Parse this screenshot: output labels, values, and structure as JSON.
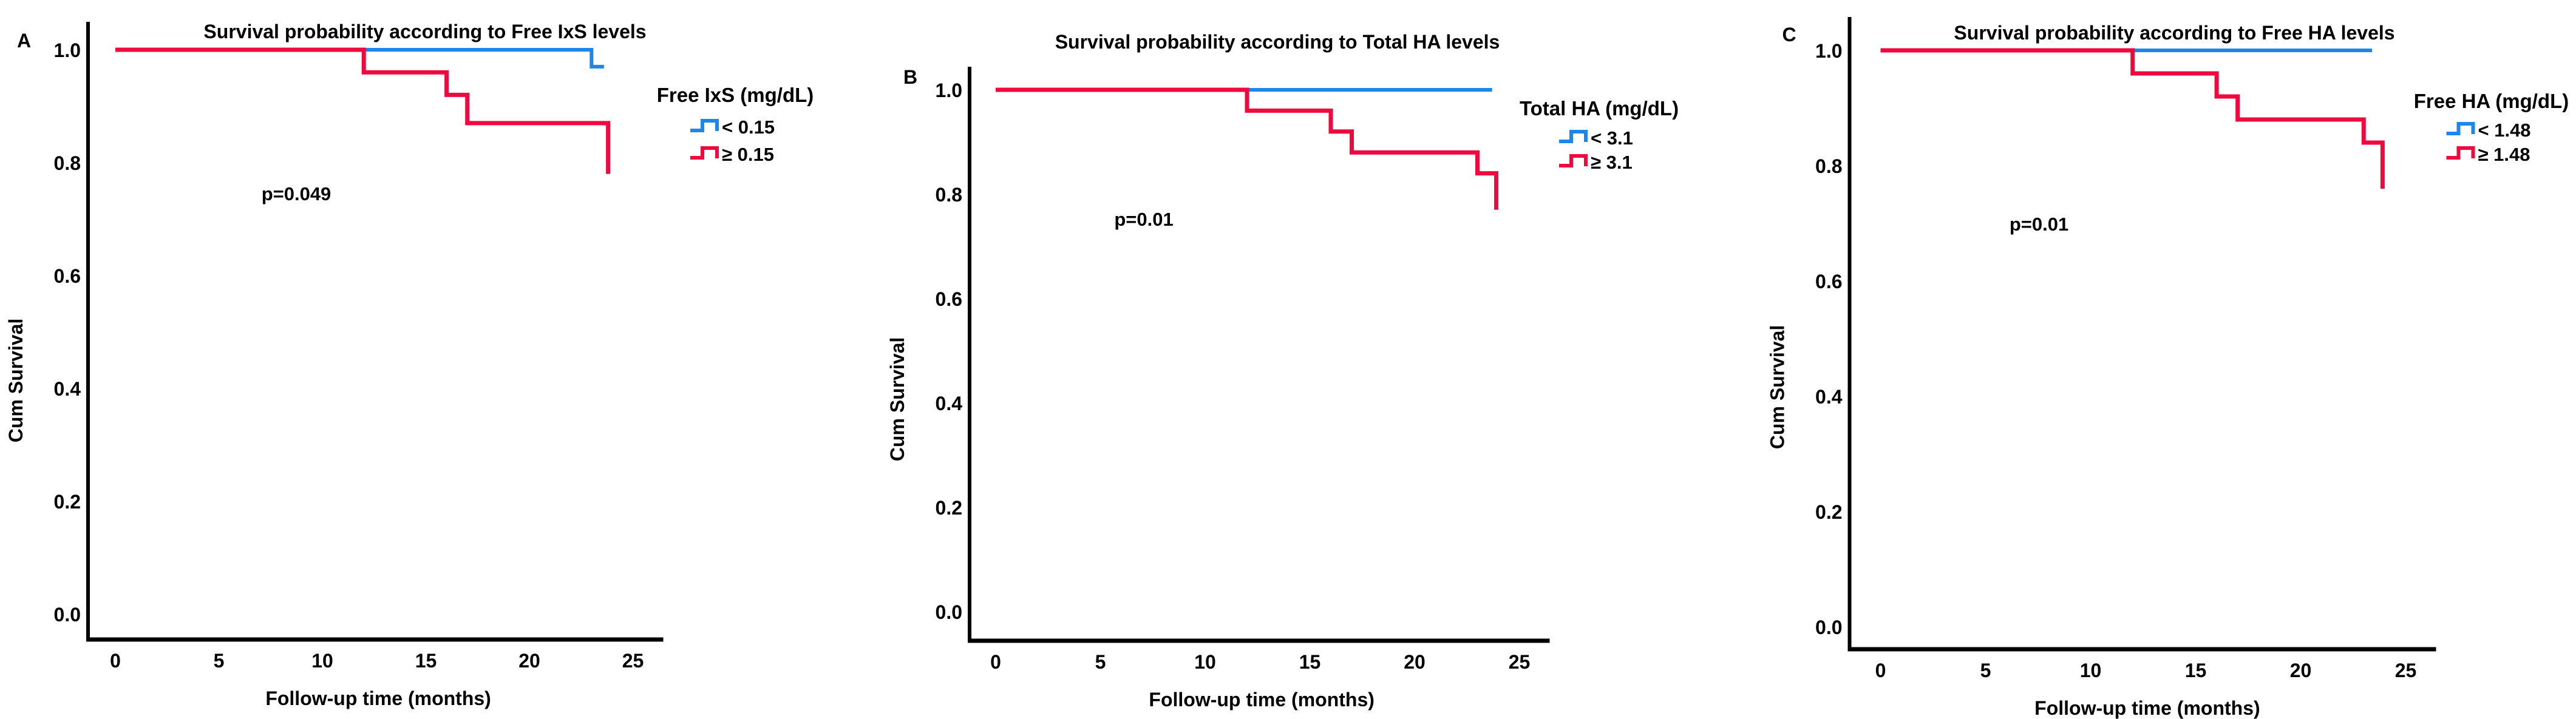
{
  "figure": {
    "background": "#ffffff"
  },
  "colors": {
    "blue": "#1d86e8",
    "red": "#ee0a3e",
    "axis": "#000000",
    "text": "#000000"
  },
  "chart_data": [
    {
      "type": "line",
      "subtype": "kaplan-meier-step",
      "panel_label": "A",
      "title": "Survival probability according to Free IxS levels",
      "xlabel": "Follow-up time (months)",
      "ylabel": "Cum Survival",
      "annotation_p_value": "p=0.049",
      "x_ticks": [
        "0",
        "5",
        "10",
        "15",
        "20",
        "25"
      ],
      "y_ticks": [
        "1.0",
        "0.8",
        "0.6",
        "0.4",
        "0.2",
        "0.0"
      ],
      "xlim": [
        0,
        25.5
      ],
      "ylim": [
        0,
        1.0
      ],
      "grid": false,
      "legend": {
        "title": "Free IxS (mg/dL)",
        "position": "right",
        "items": [
          {
            "label": "< 0.15",
            "color": "blue"
          },
          {
            "label": "≥ 0.15",
            "color": "red"
          }
        ]
      },
      "series": [
        {
          "name": "< 0.15",
          "color": "blue",
          "step_points": [
            [
              0,
              1.0
            ],
            [
              23,
              1.0
            ],
            [
              23,
              0.97
            ],
            [
              23.6,
              0.97
            ]
          ]
        },
        {
          "name": "≥ 0.15",
          "color": "red",
          "step_points": [
            [
              0,
              1.0
            ],
            [
              12,
              1.0
            ],
            [
              12,
              0.96
            ],
            [
              16,
              0.96
            ],
            [
              16,
              0.92
            ],
            [
              17,
              0.92
            ],
            [
              17,
              0.87
            ],
            [
              23.8,
              0.87
            ],
            [
              23.8,
              0.78
            ]
          ]
        }
      ]
    },
    {
      "type": "line",
      "subtype": "kaplan-meier-step",
      "panel_label": "B",
      "title": "Survival probability according to Total HA levels",
      "xlabel": "Follow-up time (months)",
      "ylabel": "Cum Survival",
      "annotation_p_value": "p=0.01",
      "x_ticks": [
        "0",
        "5",
        "10",
        "15",
        "20",
        "25"
      ],
      "y_ticks": [
        "1.0",
        "0.8",
        "0.6",
        "0.4",
        "0.2",
        "0.0"
      ],
      "xlim": [
        0,
        25.5
      ],
      "ylim": [
        0,
        1.0
      ],
      "grid": false,
      "legend": {
        "title": "Total HA (mg/dL)",
        "position": "right",
        "items": [
          {
            "label": "< 3.1",
            "color": "blue"
          },
          {
            "label": "≥ 3.1",
            "color": "red"
          }
        ]
      },
      "series": [
        {
          "name": "< 3.1",
          "color": "blue",
          "step_points": [
            [
              0,
              1.0
            ],
            [
              23.7,
              1.0
            ]
          ]
        },
        {
          "name": "≥ 3.1",
          "color": "red",
          "step_points": [
            [
              0,
              1.0
            ],
            [
              12,
              1.0
            ],
            [
              12,
              0.96
            ],
            [
              16,
              0.96
            ],
            [
              16,
              0.92
            ],
            [
              17,
              0.92
            ],
            [
              17,
              0.88
            ],
            [
              23,
              0.88
            ],
            [
              23,
              0.84
            ],
            [
              23.9,
              0.84
            ],
            [
              23.9,
              0.77
            ]
          ]
        }
      ]
    },
    {
      "type": "line",
      "subtype": "kaplan-meier-step",
      "panel_label": "C",
      "title": "Survival probability according to Free HA levels",
      "xlabel": "Follow-up time (months)",
      "ylabel": "Cum Survival",
      "annotation_p_value": "p=0.01",
      "x_ticks": [
        "0",
        "5",
        "10",
        "15",
        "20",
        "25"
      ],
      "y_ticks": [
        "1.0",
        "0.8",
        "0.6",
        "0.4",
        "0.2",
        "0.0"
      ],
      "xlim": [
        0,
        25.5
      ],
      "ylim": [
        0,
        1.0
      ],
      "grid": false,
      "legend": {
        "title": "Free HA (mg/dL)",
        "position": "right",
        "items": [
          {
            "label": "< 1.48",
            "color": "blue"
          },
          {
            "label": "≥ 1.48",
            "color": "red"
          }
        ]
      },
      "series": [
        {
          "name": "< 1.48",
          "color": "blue",
          "step_points": [
            [
              0,
              1.0
            ],
            [
              23.4,
              1.0
            ]
          ]
        },
        {
          "name": "≥ 1.48",
          "color": "red",
          "step_points": [
            [
              0,
              1.0
            ],
            [
              12,
              1.0
            ],
            [
              12,
              0.96
            ],
            [
              16,
              0.96
            ],
            [
              16,
              0.92
            ],
            [
              17,
              0.92
            ],
            [
              17,
              0.88
            ],
            [
              23,
              0.88
            ],
            [
              23,
              0.84
            ],
            [
              23.9,
              0.84
            ],
            [
              23.9,
              0.76
            ]
          ]
        }
      ]
    }
  ]
}
